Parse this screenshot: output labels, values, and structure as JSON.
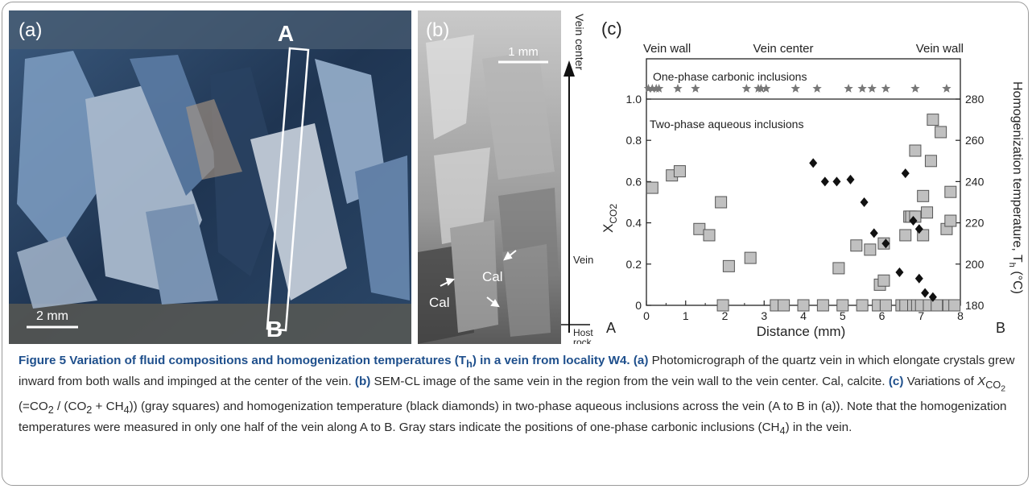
{
  "panel_a": {
    "label": "(a)",
    "point_a": "A",
    "point_b": "B",
    "scale": "2 mm"
  },
  "panel_b": {
    "label": "(b)",
    "scale": "1 mm",
    "cal_left": "Cal",
    "cal_right": "Cal",
    "side_top": "Vein center",
    "side_mid": "Vein",
    "side_bot1": "Host",
    "side_bot2": "rock"
  },
  "panel_c": {
    "label": "(c)",
    "top_left": "Vein wall",
    "top_center": "Vein center",
    "top_right": "Vein wall",
    "one_phase_label": "One-phase carbonic inclusions",
    "two_phase_label": "Two-phase aqueous inclusions",
    "end_a": "A",
    "end_b": "B"
  },
  "chart_data": {
    "type": "scatter",
    "xlabel": "Distance (mm)",
    "ylabel_left": "X",
    "ylabel_left_sub": "CO2",
    "ylabel_right": "Homogenization temperature, T",
    "ylabel_right_sub": "h",
    "ylabel_right_unit": " (°C)",
    "xlim": [
      0,
      8
    ],
    "ylim_left": [
      0,
      1.0
    ],
    "ylim_right": [
      180,
      280
    ],
    "x_ticks": [
      "0",
      "1",
      "2",
      "3",
      "4",
      "5",
      "6",
      "7",
      "8"
    ],
    "y_ticks_left": [
      "0",
      "0.2",
      "0.4",
      "0.6",
      "0.8",
      "1.0"
    ],
    "y_ticks_right": [
      "180",
      "200",
      "220",
      "240",
      "260",
      "280"
    ],
    "series": [
      {
        "marker": "gray-square",
        "color": "#c0c0c0",
        "points": [
          [
            0.15,
            0.57
          ],
          [
            0.65,
            0.63
          ],
          [
            0.85,
            0.65
          ],
          [
            1.35,
            0.37
          ],
          [
            1.6,
            0.34
          ],
          [
            1.9,
            0.5
          ],
          [
            2.1,
            0.19
          ],
          [
            2.65,
            0.23
          ],
          [
            4.9,
            0.18
          ],
          [
            5.35,
            0.29
          ],
          [
            5.7,
            0.27
          ],
          [
            5.95,
            0.1
          ],
          [
            6.05,
            0.12
          ],
          [
            6.05,
            0.3
          ],
          [
            6.6,
            0.34
          ],
          [
            6.7,
            0.43
          ],
          [
            6.75,
            0.43
          ],
          [
            6.85,
            0.75
          ],
          [
            6.85,
            0.43
          ],
          [
            7.05,
            0.53
          ],
          [
            7.05,
            0.34
          ],
          [
            7.15,
            0.45
          ],
          [
            7.25,
            0.7
          ],
          [
            7.3,
            0.9
          ],
          [
            7.5,
            0.84
          ],
          [
            7.65,
            0.37
          ],
          [
            7.75,
            0.55
          ],
          [
            7.75,
            0.41
          ],
          [
            1.95,
            0
          ],
          [
            3.3,
            0
          ],
          [
            3.5,
            0
          ],
          [
            4.0,
            0
          ],
          [
            4.5,
            0
          ],
          [
            5.0,
            0
          ],
          [
            5.5,
            0
          ],
          [
            5.9,
            0
          ],
          [
            6.1,
            0
          ],
          [
            6.5,
            0
          ],
          [
            6.6,
            0
          ],
          [
            6.8,
            0
          ],
          [
            6.9,
            0
          ],
          [
            7.0,
            0
          ],
          [
            7.2,
            0
          ],
          [
            7.4,
            0
          ],
          [
            7.7,
            0
          ],
          [
            7.85,
            0
          ]
        ]
      },
      {
        "marker": "black-diamond",
        "color": "#111111",
        "points": [
          [
            4.25,
            249
          ],
          [
            4.55,
            240
          ],
          [
            4.85,
            240
          ],
          [
            5.2,
            241
          ],
          [
            5.55,
            230
          ],
          [
            5.8,
            215
          ],
          [
            6.1,
            210
          ],
          [
            6.45,
            196
          ],
          [
            6.6,
            244
          ],
          [
            6.8,
            221
          ],
          [
            6.95,
            217
          ],
          [
            6.95,
            193
          ],
          [
            7.1,
            186
          ],
          [
            7.3,
            184
          ]
        ]
      },
      {
        "marker": "gray-star",
        "color": "#777777",
        "points": [
          [
            0.05,
            1.08
          ],
          [
            0.15,
            1.08
          ],
          [
            0.25,
            1.08
          ],
          [
            0.32,
            1.08
          ],
          [
            0.8,
            1.08
          ],
          [
            1.25,
            1.08
          ],
          [
            2.55,
            1.08
          ],
          [
            2.85,
            1.08
          ],
          [
            2.92,
            1.08
          ],
          [
            3.05,
            1.08
          ],
          [
            3.8,
            1.08
          ],
          [
            4.35,
            1.08
          ],
          [
            5.15,
            1.08
          ],
          [
            5.5,
            1.08
          ],
          [
            5.75,
            1.08
          ],
          [
            6.1,
            1.08
          ],
          [
            6.85,
            1.08
          ],
          [
            7.65,
            1.08
          ]
        ]
      }
    ]
  },
  "caption": {
    "title": "Figure 5 Variation of fluid compositions and homogenization temperatures (T",
    "title_sub": "h",
    "title_end": ") in a vein from locality W4.",
    "a_label": "(a)",
    "a_text": " Photomicrograph of the quartz vein in which elongate crystals grew inward from both walls and impinged at the center of the vein. ",
    "b_label": "(b)",
    "b_text": " SEM-CL image of the same vein in the region from the vein wall to the vein center. Cal, calcite. ",
    "c_label": "(c)",
    "c_text1": " Variations of ",
    "c_x": "X",
    "c_sub": "CO",
    "c_sub2": "2",
    "c_formula_a": " (=CO",
    "c_formula_a_sub": "2",
    "c_formula_b": " / (CO",
    "c_formula_b_sub": "2",
    "c_formula_c": " + CH",
    "c_formula_c_sub": "4",
    "c_text2": ")) (gray squares) and homogenization temperature (black diamonds) in two-phase aqueous inclusions across the vein (A to B in (a)). Note that the homogenization temperatures were measured in only one half of the vein along A to B. Gray stars indicate the positions of one-phase carbonic inclusions (CH",
    "c_text2_sub": "4",
    "c_text3": ") in the vein."
  }
}
